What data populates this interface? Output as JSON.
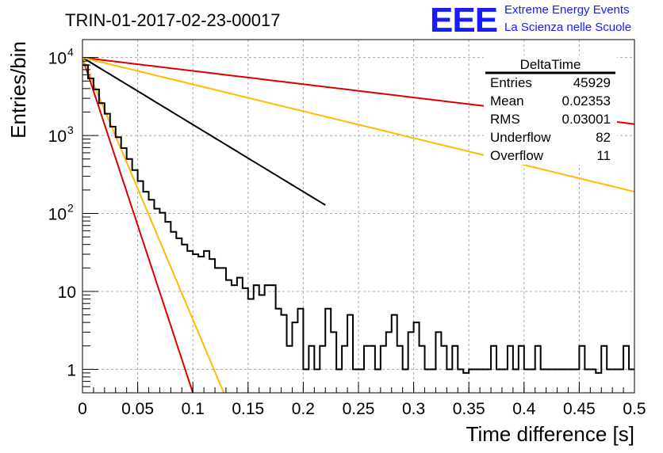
{
  "chart_data": {
    "type": "line",
    "title": "TRIN-01-2017-02-23-00017",
    "xlabel": "Time difference [s]",
    "ylabel": "Entries/bin",
    "xlim": [
      0,
      0.5
    ],
    "ylim": [
      0.5,
      17000
    ],
    "y_scale": "log",
    "grid": true,
    "x_ticks": [
      "0",
      "0.05",
      "0.1",
      "0.15",
      "0.2",
      "0.25",
      "0.3",
      "0.35",
      "0.4",
      "0.45",
      "0.5"
    ],
    "y_ticks": [
      {
        "value": 10000,
        "base": "10",
        "exp": "4"
      },
      {
        "value": 1000,
        "base": "10",
        "exp": "3"
      },
      {
        "value": 100,
        "base": "10",
        "exp": "2"
      },
      {
        "value": 10,
        "base": "10",
        "exp": ""
      },
      {
        "value": 1,
        "base": "1",
        "exp": ""
      }
    ],
    "histogram": {
      "color": "#000000",
      "bin_width": 0.005,
      "counts": [
        8000,
        5400,
        3900,
        2600,
        1900,
        1300,
        950,
        690,
        500,
        360,
        260,
        190,
        150,
        115,
        102,
        78,
        58,
        48,
        40,
        33,
        30,
        28,
        33,
        26,
        20,
        20,
        14,
        12,
        15,
        11,
        8,
        12,
        9,
        12,
        12,
        6,
        5,
        2,
        4,
        6,
        1,
        2,
        1,
        2,
        6,
        3,
        1,
        2,
        5,
        1,
        1,
        2,
        2,
        1,
        2,
        3,
        5,
        2,
        1,
        3,
        4,
        2,
        1,
        1,
        3,
        2,
        1,
        2,
        1,
        0.9,
        1,
        1,
        1,
        1,
        2,
        1,
        1,
        2,
        1,
        2,
        1,
        1,
        2,
        1,
        1,
        1,
        1,
        1,
        1,
        1,
        2,
        1,
        1,
        0.9,
        2,
        1,
        1,
        1,
        2,
        1
      ]
    },
    "series": [
      {
        "color": "#000000",
        "amplitude": 10000,
        "x_end_value": 0.5,
        "y_end_value": 0.5,
        "x_end": 0.22
      },
      {
        "color": "#dd0000",
        "amplitude": 10000,
        "x_end_value": 0.5,
        "y_end_value": 1400,
        "x_end": 0.5
      },
      {
        "color": "#ffbb00",
        "amplitude": 10000,
        "x_end_value": 0.5,
        "y_end_value": 190,
        "x_end": 0.5
      },
      {
        "color": "#dd0000",
        "amplitude": 10000,
        "x_end_value": 0.1,
        "y_end_value": 0.5,
        "x_end": 0.1
      },
      {
        "color": "#ffbb00",
        "amplitude": 10000,
        "x_end_value": 0.128,
        "y_end_value": 0.5,
        "x_end": 0.128
      }
    ]
  },
  "stats": {
    "title": "DeltaTime",
    "rows": [
      {
        "label": "Entries",
        "value": "45929"
      },
      {
        "label": "Mean",
        "value": "0.02353"
      },
      {
        "label": "RMS",
        "value": "0.03001"
      },
      {
        "label": "Underflow",
        "value": "82"
      },
      {
        "label": "Overflow",
        "value": "11"
      }
    ]
  },
  "logo": {
    "mark": "EEE",
    "line1": "Extreme Energy Events",
    "line2": "La Scienza nelle Scuole",
    "color": "#1a1aff"
  }
}
